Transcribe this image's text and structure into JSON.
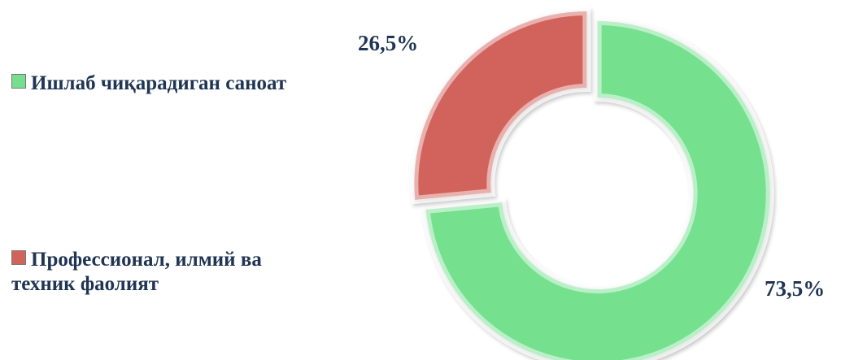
{
  "chart_data": {
    "type": "donut",
    "categories": [
      "Ишлаб чиқарадиган саноат",
      "Профессионал, илмий ва техник фаолият"
    ],
    "values": [
      73.5,
      26.5
    ],
    "value_labels": [
      "73,5%",
      "26,5%"
    ],
    "colors": [
      "#74e08e",
      "#d2625c"
    ]
  }
}
